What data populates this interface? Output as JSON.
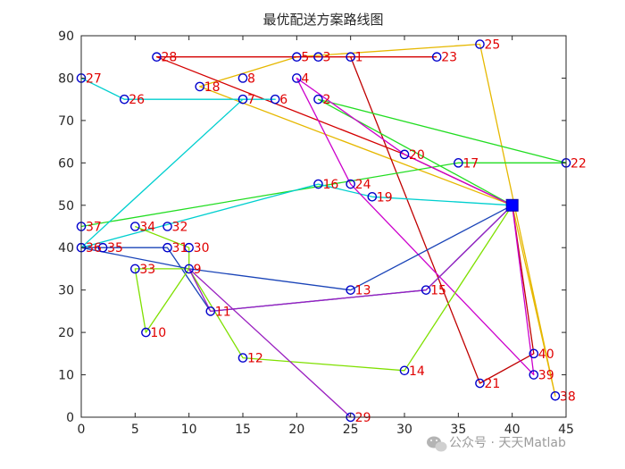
{
  "chart_data": {
    "type": "scatter",
    "title": "最优配送方案路线图",
    "xlabel": "",
    "ylabel": "",
    "xlim": [
      0,
      45
    ],
    "ylim": [
      0,
      90
    ],
    "xticks": [
      0,
      5,
      10,
      15,
      20,
      25,
      30,
      35,
      40,
      45
    ],
    "yticks": [
      0,
      10,
      20,
      30,
      40,
      50,
      60,
      70,
      80,
      90
    ],
    "grid": false,
    "depot": {
      "x": 40,
      "y": 50,
      "color": "#0000ff"
    },
    "customers": [
      {
        "id": "1",
        "x": 25,
        "y": 85
      },
      {
        "id": "2",
        "x": 22,
        "y": 75
      },
      {
        "id": "3",
        "x": 22,
        "y": 85
      },
      {
        "id": "4",
        "x": 20,
        "y": 80
      },
      {
        "id": "5",
        "x": 20,
        "y": 85
      },
      {
        "id": "6",
        "x": 18,
        "y": 75
      },
      {
        "id": "7",
        "x": 15,
        "y": 75
      },
      {
        "id": "8",
        "x": 15,
        "y": 80
      },
      {
        "id": "9",
        "x": 10,
        "y": 35
      },
      {
        "id": "10",
        "x": 6,
        "y": 20
      },
      {
        "id": "11",
        "x": 12,
        "y": 25
      },
      {
        "id": "12",
        "x": 15,
        "y": 14
      },
      {
        "id": "13",
        "x": 25,
        "y": 30
      },
      {
        "id": "14",
        "x": 30,
        "y": 11
      },
      {
        "id": "15",
        "x": 32,
        "y": 30
      },
      {
        "id": "16",
        "x": 22,
        "y": 55
      },
      {
        "id": "17",
        "x": 35,
        "y": 60
      },
      {
        "id": "18",
        "x": 11,
        "y": 78
      },
      {
        "id": "19",
        "x": 27,
        "y": 52
      },
      {
        "id": "20",
        "x": 30,
        "y": 62
      },
      {
        "id": "21",
        "x": 37,
        "y": 8
      },
      {
        "id": "22",
        "x": 45,
        "y": 60
      },
      {
        "id": "23",
        "x": 33,
        "y": 85
      },
      {
        "id": "24",
        "x": 25,
        "y": 55
      },
      {
        "id": "25",
        "x": 37,
        "y": 88
      },
      {
        "id": "26",
        "x": 4,
        "y": 75
      },
      {
        "id": "27",
        "x": 0,
        "y": 80
      },
      {
        "id": "28",
        "x": 7,
        "y": 85
      },
      {
        "id": "29",
        "x": 25,
        "y": 0
      },
      {
        "id": "30",
        "x": 10,
        "y": 40
      },
      {
        "id": "31",
        "x": 8,
        "y": 40
      },
      {
        "id": "32",
        "x": 8,
        "y": 45
      },
      {
        "id": "33",
        "x": 5,
        "y": 35
      },
      {
        "id": "34",
        "x": 5,
        "y": 45
      },
      {
        "id": "35",
        "x": 2,
        "y": 40
      },
      {
        "id": "36",
        "x": 0,
        "y": 40
      },
      {
        "id": "37",
        "x": 0,
        "y": 45
      },
      {
        "id": "38",
        "x": 44,
        "y": 5
      },
      {
        "id": "39",
        "x": 42,
        "y": 10
      },
      {
        "id": "40",
        "x": 42,
        "y": 15
      }
    ],
    "routes": [
      {
        "color": "#e6b800",
        "path": [
          0,
          38,
          25,
          5,
          18,
          0
        ]
      },
      {
        "color": "#d40000",
        "path": [
          0,
          20,
          28,
          3,
          1,
          23
        ]
      },
      {
        "color": "#c00000",
        "path": [
          0,
          40,
          21,
          1
        ]
      },
      {
        "color": "#22dd22",
        "path": [
          0,
          2,
          22,
          17,
          37
        ]
      },
      {
        "color": "#00cfcf",
        "path": [
          0,
          19,
          16,
          36,
          7,
          6,
          26,
          27
        ]
      },
      {
        "color": "#cc00cc",
        "path": [
          0,
          20,
          4,
          24,
          39,
          0
        ]
      },
      {
        "color": "#1a44b8",
        "path": [
          0,
          13,
          9,
          36,
          35,
          31,
          11,
          15,
          0
        ]
      },
      {
        "color": "#7fe000",
        "path": [
          0,
          14,
          12,
          9,
          33,
          10,
          9,
          30,
          34
        ]
      },
      {
        "color": "#9a20c0",
        "path": [
          0,
          15,
          11,
          9,
          29
        ]
      }
    ]
  },
  "watermark": {
    "text": "公众号 · 天天Matlab",
    "icon": "wechat-icon"
  }
}
